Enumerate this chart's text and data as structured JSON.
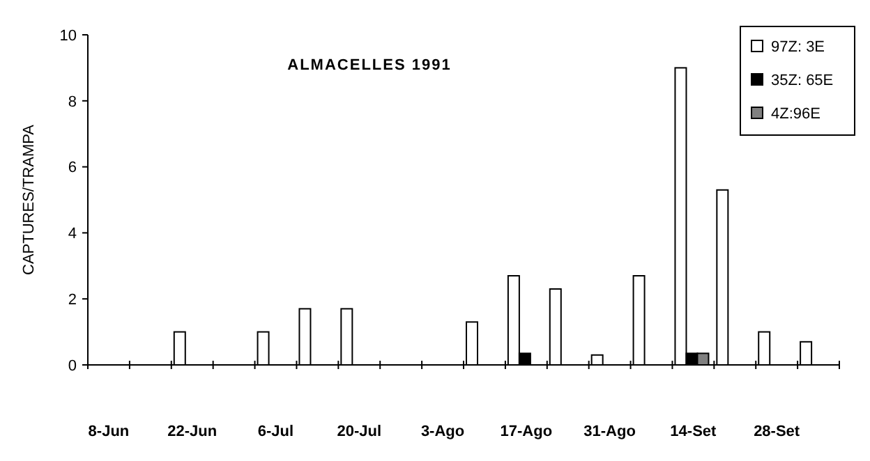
{
  "chart_data": {
    "type": "bar",
    "title": "ALMACELLES 1991",
    "ylabel": "CAPTURES/TRAMPA",
    "categories": [
      "8-Jun",
      null,
      "22-Jun",
      null,
      "6-Jul",
      null,
      "20-Jul",
      null,
      "3-Ago",
      null,
      "17-Ago",
      null,
      "31-Ago",
      null,
      "14-Set",
      null,
      "28-Set",
      null
    ],
    "series": [
      {
        "name": "97Z: 3E",
        "color": "#ffffff",
        "values": [
          null,
          null,
          1.0,
          null,
          1.0,
          1.7,
          1.7,
          null,
          null,
          1.3,
          2.7,
          2.3,
          0.3,
          2.7,
          9.0,
          5.3,
          1.0,
          0.7
        ]
      },
      {
        "name": "35Z: 65E",
        "color": "#000000",
        "values": [
          null,
          null,
          null,
          null,
          null,
          null,
          null,
          null,
          null,
          null,
          0.35,
          null,
          null,
          null,
          0.35,
          null,
          null,
          null
        ]
      },
      {
        "name": "4Z:96E",
        "color": "#808080",
        "values": [
          null,
          null,
          null,
          null,
          null,
          null,
          null,
          null,
          null,
          null,
          null,
          null,
          null,
          null,
          0.35,
          null,
          null,
          null
        ]
      }
    ],
    "ylim": [
      0,
      10
    ],
    "yticks": [
      0,
      2,
      4,
      6,
      8,
      10
    ],
    "grid": false,
    "legend": "top right"
  }
}
